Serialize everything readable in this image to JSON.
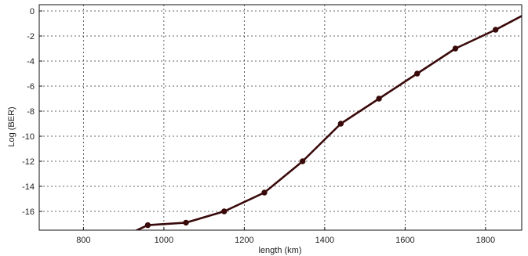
{
  "chart_data": {
    "type": "line",
    "title": "",
    "xlabel": "length (km)",
    "ylabel": "Log (BER)",
    "xlim": [
      690,
      1890
    ],
    "ylim": [
      -17.5,
      0.5
    ],
    "xticks": [
      800,
      1000,
      1200,
      1400,
      1600,
      1800
    ],
    "yticks": [
      0,
      -2,
      -4,
      -6,
      -8,
      -10,
      -12,
      -14,
      -16
    ],
    "xtick_labels": [
      "800",
      "1000",
      "1200",
      "1400",
      "1600",
      "1800"
    ],
    "ytick_labels": [
      "0",
      "-2",
      "-4",
      "-6",
      "-8",
      "-10",
      "-12",
      "-14",
      "-16"
    ],
    "grid": true,
    "series": [
      {
        "color": "#3a0a0a",
        "marker": "circle",
        "x": [
          880,
          960,
          1055,
          1150,
          1250,
          1345,
          1440,
          1535,
          1630,
          1725,
          1825,
          1890
        ],
        "y": [
          -18.3,
          -17.1,
          -16.9,
          -16.0,
          -14.5,
          -12.0,
          -9.0,
          -7.0,
          -5.0,
          -3.0,
          -1.5,
          -0.4
        ],
        "marker_indices": [
          1,
          2,
          3,
          4,
          5,
          6,
          7,
          8,
          9,
          10
        ]
      }
    ]
  }
}
